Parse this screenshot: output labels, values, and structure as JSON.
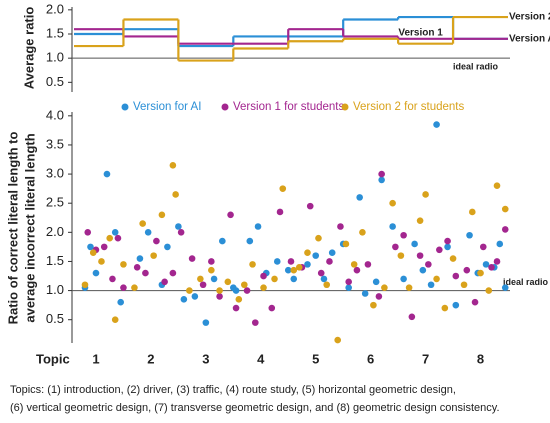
{
  "chart_data": [
    {
      "type": "step",
      "y_title": "Average ratio",
      "x": [
        1,
        2,
        3,
        4,
        5,
        6,
        7,
        8
      ],
      "xlim": [
        0.6,
        8.5
      ],
      "ylim": [
        0.3,
        2.1
      ],
      "yticks": [
        {
          "value": 0.5,
          "label": "0.5"
        },
        {
          "value": 1.0,
          "label": "1.0"
        },
        {
          "value": 1.5,
          "label": "1.5"
        },
        {
          "value": 2.0,
          "label": "2.0"
        }
      ],
      "reference_line": 1.0,
      "reference_label": "ideal radio",
      "series": [
        {
          "name": "Version AI",
          "color": "#2b8fd6",
          "values": [
            1.5,
            1.6,
            1.25,
            1.45,
            1.45,
            1.8,
            1.85,
            1.4
          ]
        },
        {
          "name": "Version 1",
          "color": "#a3268f",
          "values": [
            1.6,
            1.45,
            1.3,
            1.3,
            1.6,
            1.45,
            1.4,
            1.4
          ]
        },
        {
          "name": "Version 2",
          "color": "#d9a21b",
          "values": [
            1.25,
            1.8,
            0.95,
            1.2,
            1.35,
            1.4,
            1.3,
            1.85
          ]
        }
      ]
    },
    {
      "type": "scatter",
      "y_title": [
        "Ratio of correct literal length to",
        "average incorrect literal length"
      ],
      "x_title": "Topic",
      "xlim": [
        0.6,
        8.5
      ],
      "xticks": [
        1,
        2,
        3,
        4,
        5,
        6,
        7,
        8
      ],
      "ylim": [
        0.1,
        4.1
      ],
      "yticks": [
        {
          "value": 0.5,
          "label": "0.5"
        },
        {
          "value": 1.0,
          "label": "1.0"
        },
        {
          "value": 1.5,
          "label": "1.5"
        },
        {
          "value": 2.0,
          "label": "2.0"
        },
        {
          "value": 2.5,
          "label": "2.5"
        },
        {
          "value": 3.0,
          "label": "3.0"
        },
        {
          "value": 3.5,
          "label": "3.5"
        },
        {
          "value": 4.0,
          "label": "4.0"
        }
      ],
      "reference_line": 1.0,
      "reference_label": "ideal radio",
      "series": [
        {
          "name": "Version for AI",
          "color": "#2b8fd6",
          "x": [
            0.8,
            1.0,
            1.2,
            0.9,
            1.35,
            1.45,
            1.8,
            1.95,
            2.2,
            2.3,
            2.5,
            2.6,
            2.8,
            3.0,
            3.15,
            3.3,
            3.5,
            3.55,
            3.8,
            3.95,
            4.1,
            4.3,
            4.5,
            4.6,
            4.85,
            5.0,
            5.15,
            5.3,
            5.5,
            5.6,
            5.8,
            5.9,
            6.1,
            6.2,
            6.4,
            6.6,
            6.8,
            6.95,
            7.1,
            7.2,
            7.4,
            7.55,
            7.8,
            7.95,
            8.1,
            8.25,
            8.35,
            8.45
          ],
          "y": [
            1.05,
            1.3,
            3.0,
            1.75,
            2.0,
            0.8,
            1.55,
            2.0,
            1.1,
            1.75,
            2.1,
            0.85,
            0.9,
            0.45,
            1.2,
            1.85,
            1.05,
            1.0,
            1.85,
            2.1,
            1.3,
            1.5,
            1.35,
            1.2,
            1.45,
            1.6,
            1.2,
            1.65,
            1.8,
            1.05,
            2.6,
            0.95,
            1.15,
            2.9,
            2.1,
            1.2,
            1.8,
            1.35,
            1.1,
            3.85,
            1.75,
            0.75,
            1.95,
            1.3,
            1.45,
            1.4,
            1.8,
            1.05
          ]
        },
        {
          "name": "Version 1 for students",
          "color": "#a3268f",
          "x": [
            0.85,
            1.0,
            1.15,
            1.3,
            1.4,
            1.5,
            1.75,
            1.9,
            2.1,
            2.25,
            2.4,
            2.55,
            2.75,
            2.95,
            3.1,
            3.25,
            3.45,
            3.55,
            3.75,
            3.9,
            4.05,
            4.2,
            4.35,
            4.55,
            4.75,
            4.9,
            5.1,
            5.25,
            5.45,
            5.6,
            5.75,
            5.95,
            6.15,
            6.2,
            6.45,
            6.6,
            6.75,
            6.9,
            7.05,
            7.25,
            7.4,
            7.55,
            7.75,
            7.9,
            8.05,
            8.2,
            8.3,
            8.45
          ],
          "y": [
            2.0,
            1.7,
            1.75,
            1.2,
            1.9,
            1.05,
            1.4,
            1.3,
            1.85,
            1.15,
            1.3,
            2.0,
            1.55,
            1.1,
            1.5,
            0.9,
            2.3,
            0.7,
            1.0,
            0.45,
            1.25,
            0.7,
            2.35,
            1.5,
            1.4,
            2.45,
            1.3,
            1.5,
            2.1,
            1.15,
            1.35,
            1.45,
            0.9,
            3.0,
            1.75,
            1.95,
            0.55,
            1.6,
            1.45,
            1.7,
            1.85,
            1.25,
            1.35,
            0.8,
            1.75,
            1.4,
            1.5,
            2.05
          ]
        },
        {
          "name": "Version 2 for students",
          "color": "#d9a21b",
          "x": [
            0.8,
            0.95,
            1.1,
            1.25,
            1.35,
            1.5,
            1.7,
            1.85,
            2.05,
            2.2,
            2.4,
            2.45,
            2.7,
            2.9,
            3.1,
            3.25,
            3.4,
            3.6,
            3.7,
            3.85,
            4.05,
            4.25,
            4.4,
            4.6,
            4.7,
            4.85,
            5.05,
            5.2,
            5.4,
            5.55,
            5.7,
            5.85,
            6.05,
            6.25,
            6.4,
            6.55,
            6.7,
            6.9,
            7.0,
            7.2,
            7.35,
            7.5,
            7.7,
            7.85,
            8.0,
            8.15,
            8.3,
            8.45
          ],
          "y": [
            1.1,
            1.65,
            1.5,
            1.9,
            0.5,
            1.45,
            1.05,
            2.15,
            1.6,
            2.3,
            3.15,
            2.65,
            1.0,
            1.2,
            1.35,
            1.0,
            1.15,
            0.85,
            1.1,
            1.45,
            1.05,
            1.2,
            2.75,
            1.35,
            1.4,
            1.65,
            1.9,
            1.1,
            0.15,
            1.8,
            1.45,
            2.0,
            0.75,
            1.05,
            2.5,
            1.6,
            1.05,
            2.2,
            2.65,
            1.2,
            0.7,
            1.55,
            1.1,
            2.35,
            1.3,
            1.0,
            2.8,
            2.4
          ]
        }
      ]
    }
  ],
  "caption": [
    "Topics: (1) introduction, (2) driver, (3) traffic, (4) route study, (5) horizontal geometric design,",
    "(6) vertical geometric design, (7) transverse geometric design, and (8) geometric design consistency."
  ]
}
